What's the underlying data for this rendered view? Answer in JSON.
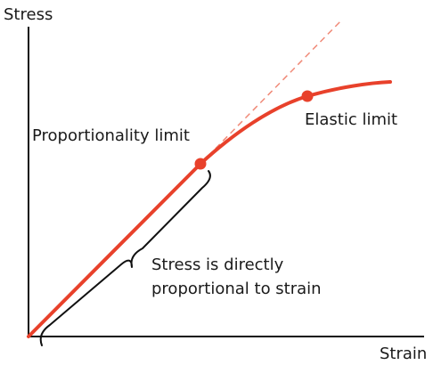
{
  "labels": {
    "y_axis": "Stress",
    "x_axis": "Strain",
    "proportionality_limit": "Proportionality limit",
    "elastic_limit": "Elastic limit",
    "brace_line1": "Stress is directly",
    "brace_line2": "proportional to strain"
  },
  "colors": {
    "curve": "#e8412b",
    "axes": "#111111",
    "text": "#1a1a1a"
  }
}
